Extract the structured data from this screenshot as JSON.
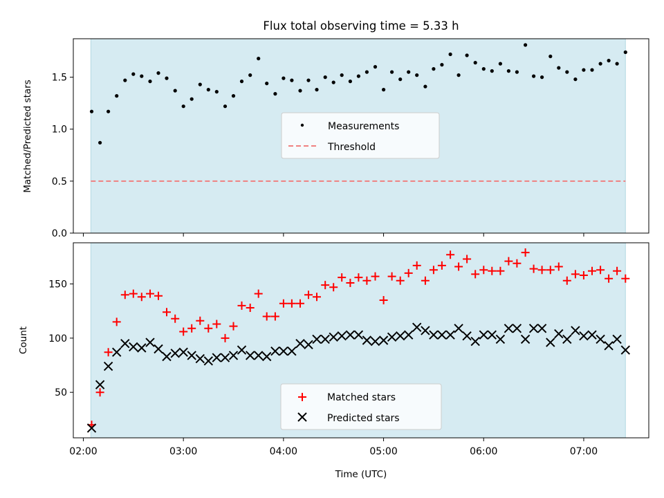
{
  "chart_data": [
    {
      "type": "scatter",
      "title": "Flux total observing time = 5.33 h",
      "ylabel": "Matched/Predicted stars",
      "xlabel": "",
      "xlim_hours": [
        1.9,
        7.65
      ],
      "ylim": [
        0,
        1.87
      ],
      "yticks": [
        0.0,
        0.5,
        1.0,
        1.5
      ],
      "ytick_labels": [
        "0.0",
        "0.5",
        "1.0",
        "1.5"
      ],
      "shaded_span_hours": [
        2.075,
        7.417
      ],
      "threshold": 0.5,
      "legend": [
        "Measurements",
        "Threshold"
      ],
      "legend_position": "center",
      "x": [
        2.083,
        2.167,
        2.25,
        2.333,
        2.417,
        2.5,
        2.583,
        2.667,
        2.75,
        2.833,
        2.917,
        3.0,
        3.083,
        3.167,
        3.25,
        3.333,
        3.417,
        3.5,
        3.583,
        3.667,
        3.75,
        3.833,
        3.917,
        4.0,
        4.083,
        4.167,
        4.25,
        4.333,
        4.417,
        4.5,
        4.583,
        4.667,
        4.75,
        4.833,
        4.917,
        5.0,
        5.083,
        5.167,
        5.25,
        5.333,
        5.417,
        5.5,
        5.583,
        5.667,
        5.75,
        5.833,
        5.917,
        6.0,
        6.083,
        6.167,
        6.25,
        6.333,
        6.417,
        6.5,
        6.583,
        6.667,
        6.75,
        6.833,
        6.917,
        7.0,
        7.083,
        7.167,
        7.25,
        7.333,
        7.417
      ],
      "series": [
        {
          "name": "Measurements",
          "values": [
            1.17,
            0.87,
            1.17,
            1.32,
            1.47,
            1.53,
            1.51,
            1.46,
            1.54,
            1.49,
            1.37,
            1.22,
            1.29,
            1.43,
            1.38,
            1.36,
            1.22,
            1.32,
            1.46,
            1.52,
            1.68,
            1.44,
            1.34,
            1.49,
            1.47,
            1.37,
            1.47,
            1.38,
            1.5,
            1.45,
            1.52,
            1.46,
            1.51,
            1.55,
            1.6,
            1.38,
            1.55,
            1.48,
            1.55,
            1.52,
            1.41,
            1.58,
            1.62,
            1.72,
            1.52,
            1.71,
            1.64,
            1.58,
            1.56,
            1.63,
            1.56,
            1.55,
            1.81,
            1.51,
            1.5,
            1.7,
            1.59,
            1.55,
            1.48,
            1.57,
            1.57,
            1.63,
            1.66,
            1.63,
            1.74
          ]
        },
        {
          "name": "Threshold",
          "values": [
            0.5
          ]
        }
      ]
    },
    {
      "type": "scatter",
      "title": "",
      "xlabel": "Time (UTC)",
      "ylabel": "Count",
      "xlim_hours": [
        1.9,
        7.65
      ],
      "ylim": [
        8,
        188
      ],
      "yticks": [
        50,
        100,
        150
      ],
      "ytick_labels": [
        "50",
        "100",
        "150"
      ],
      "xticks_hours": [
        2,
        3,
        4,
        5,
        6,
        7
      ],
      "xtick_labels": [
        "02:00",
        "03:00",
        "04:00",
        "05:00",
        "06:00",
        "07:00"
      ],
      "shaded_span_hours": [
        2.075,
        7.417
      ],
      "legend": [
        "Matched stars",
        "Predicted stars"
      ],
      "legend_position": "lower center",
      "x_matched": [
        2.083,
        2.167,
        2.25,
        2.333,
        2.417,
        2.5,
        2.583,
        2.667,
        2.75,
        2.833,
        2.917,
        3.0,
        3.083,
        3.167,
        3.25,
        3.333,
        3.417,
        3.5,
        3.583,
        3.667,
        3.75,
        3.833,
        3.917,
        4.0,
        4.083,
        4.167,
        4.25,
        4.333,
        4.417,
        4.5,
        4.583,
        4.667,
        4.75,
        4.833,
        4.917,
        5.0,
        5.083,
        5.167,
        5.25,
        5.333,
        5.417,
        5.5,
        5.583,
        5.667,
        5.75,
        5.833,
        5.917,
        6.0,
        6.083,
        6.167,
        6.25,
        6.333,
        6.417,
        6.5,
        6.583,
        6.667,
        6.75,
        6.833,
        6.917,
        7.0,
        7.083,
        7.167,
        7.25,
        7.333,
        7.417
      ],
      "x_predicted": [
        2.083,
        2.167,
        2.25,
        2.333,
        2.417,
        2.5,
        2.583,
        2.667,
        2.75,
        2.833,
        2.917,
        3.0,
        3.083,
        3.167,
        3.25,
        3.333,
        3.417,
        3.5,
        3.583,
        3.667,
        3.75,
        3.833,
        3.917,
        4.0,
        4.083,
        4.167,
        4.25,
        4.333,
        4.417,
        4.5,
        4.583,
        4.667,
        4.75,
        4.833,
        4.917,
        5.0,
        5.083,
        5.167,
        5.25,
        5.333,
        5.417,
        5.5,
        5.583,
        5.667,
        5.75,
        5.833,
        5.917,
        6.0,
        6.083,
        6.167,
        6.25,
        6.333,
        6.417,
        6.5,
        6.583,
        6.667,
        6.75,
        6.833,
        6.917,
        7.0,
        7.083,
        7.167,
        7.25,
        7.333,
        7.417
      ],
      "series": [
        {
          "name": "Matched stars",
          "values": [
            20,
            50,
            87,
            115,
            140,
            141,
            138,
            141,
            139,
            124,
            118,
            106,
            109,
            116,
            109,
            113,
            100,
            111,
            130,
            128,
            141,
            120,
            120,
            132,
            132,
            132,
            140,
            138,
            149,
            147,
            156,
            151,
            156,
            153,
            157,
            135,
            157,
            153,
            160,
            167,
            153,
            163,
            167,
            177,
            166,
            173,
            159,
            163,
            162,
            162,
            171,
            169,
            179,
            164,
            163,
            163,
            166,
            153,
            159,
            158,
            162,
            163,
            155,
            162,
            155
          ]
        },
        {
          "name": "Predicted stars",
          "values": [
            17,
            57,
            74,
            87,
            95,
            92,
            91,
            96,
            90,
            83,
            86,
            87,
            84,
            81,
            79,
            82,
            82,
            84,
            89,
            84,
            84,
            83,
            88,
            88,
            88,
            95,
            94,
            99,
            99,
            101,
            102,
            103,
            103,
            98,
            97,
            98,
            101,
            102,
            103,
            110,
            107,
            103,
            103,
            103,
            109,
            102,
            97,
            103,
            103,
            99,
            109,
            109,
            99,
            109,
            109,
            96,
            104,
            99,
            107,
            102,
            103,
            99,
            93,
            99,
            89
          ]
        }
      ]
    }
  ]
}
